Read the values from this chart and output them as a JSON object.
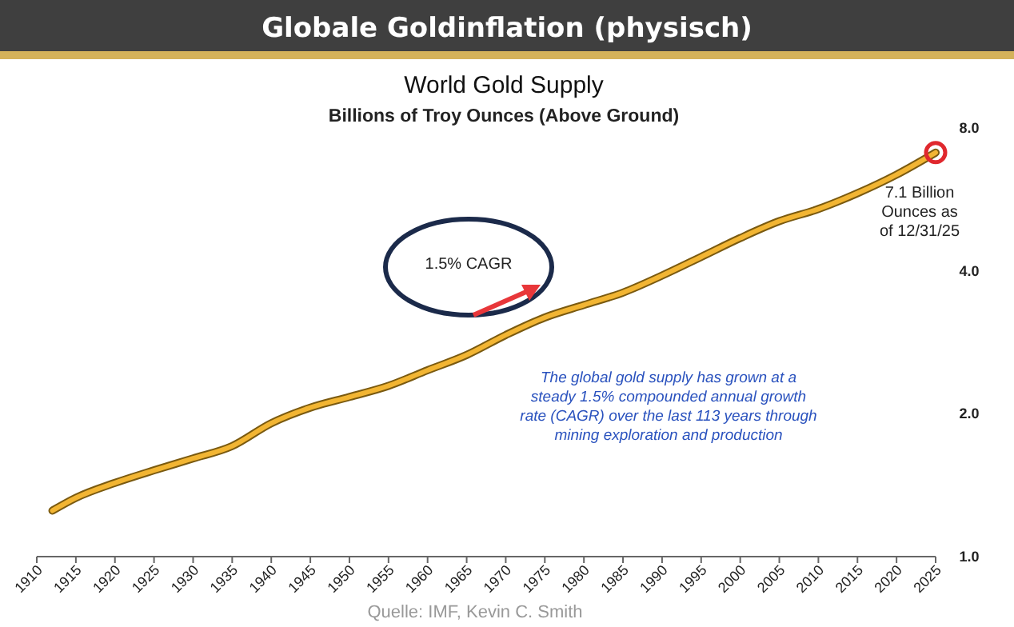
{
  "chart_data": {
    "type": "line",
    "title": "Globale Goldinflation (physisch)",
    "subtitle": "World Gold Supply",
    "ylabel": "Billions of Troy Ounces (Above Ground)",
    "x": [
      1912,
      1915,
      1920,
      1925,
      1930,
      1935,
      1940,
      1945,
      1950,
      1955,
      1960,
      1965,
      1970,
      1975,
      1980,
      1985,
      1990,
      1995,
      2000,
      2005,
      2010,
      2015,
      2020,
      2025
    ],
    "series": [
      {
        "color": "#f2b533",
        "values": [
          1.25,
          1.33,
          1.43,
          1.52,
          1.61,
          1.71,
          1.91,
          2.06,
          2.17,
          2.29,
          2.47,
          2.66,
          2.93,
          3.19,
          3.39,
          3.6,
          3.91,
          4.28,
          4.69,
          5.09,
          5.4,
          5.83,
          6.38,
          7.1
        ]
      }
    ],
    "xlim": [
      1910,
      2025
    ],
    "xticks": [
      1910,
      1915,
      1920,
      1925,
      1930,
      1935,
      1940,
      1945,
      1950,
      1955,
      1960,
      1965,
      1970,
      1975,
      1980,
      1985,
      1990,
      1995,
      2000,
      2005,
      2010,
      2015,
      2020,
      2025
    ],
    "ylim": [
      1,
      8
    ],
    "yticks": [
      {
        "value": 1,
        "label": "1.0"
      },
      {
        "value": 2,
        "label": "2.0"
      },
      {
        "value": 4,
        "label": "4.0"
      },
      {
        "value": 8,
        "label": "8.0"
      }
    ],
    "log": true,
    "grid": false,
    "marker": "none",
    "line_style": "solid",
    "annotations": [
      "1.5% CAGR",
      {
        "text": "7.1 Billion\nOunces as\nof 12/31/25",
        "x": 2025,
        "y": 7.1
      },
      "The global gold supply has grown at a\nsteady 1.5% compounded annual growth\nrate (CAGR) over the last 113 years through\nmining exploration and production",
      "Quelle: IMF, Kevin C. Smith"
    ]
  }
}
